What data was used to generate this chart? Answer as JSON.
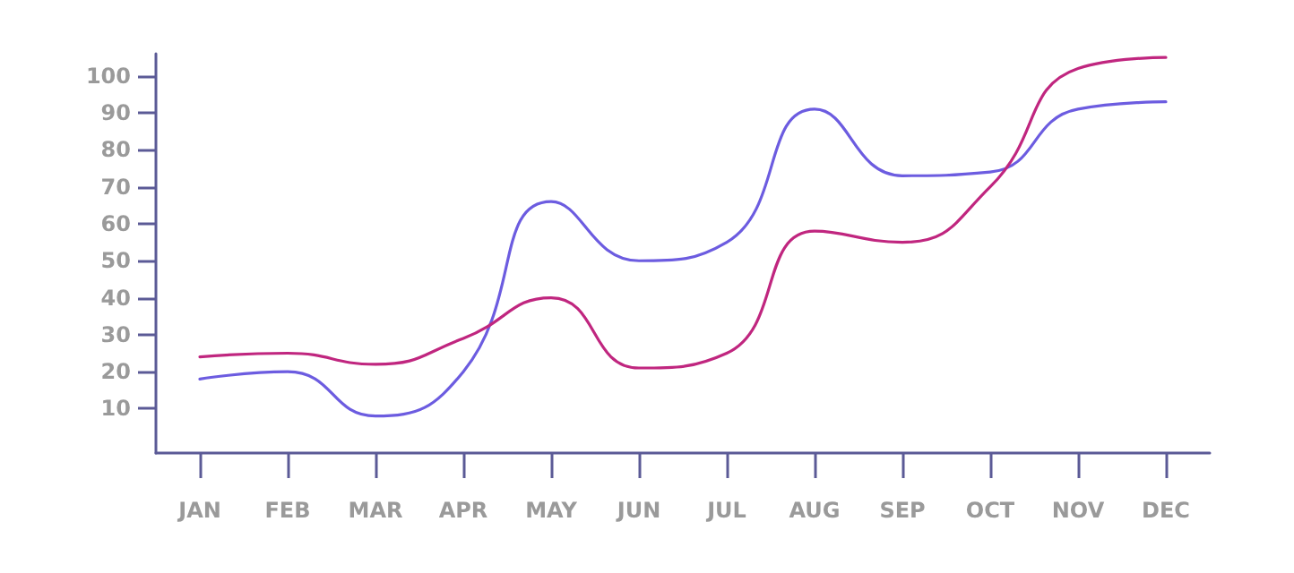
{
  "chart_data": {
    "type": "line",
    "marker": "none",
    "line_style": "solid",
    "grid": false,
    "categories": [
      "JAN",
      "FEB",
      "MAR",
      "APR",
      "MAY",
      "JUN",
      "JUL",
      "AUG",
      "SEP",
      "OCT",
      "NOV",
      "DEC"
    ],
    "ylim": [
      -2,
      106
    ],
    "yticks": [
      10,
      20,
      30,
      40,
      50,
      60,
      70,
      80,
      90,
      100
    ],
    "series": [
      {
        "color": "#6c5ce0",
        "values": [
          18,
          20,
          8,
          20,
          66,
          50,
          55,
          91,
          73,
          74,
          91,
          93
        ]
      },
      {
        "color": "#c0267f",
        "values": [
          24,
          25,
          22,
          29,
          40,
          21,
          25,
          58,
          55,
          70,
          102,
          105
        ]
      }
    ]
  }
}
